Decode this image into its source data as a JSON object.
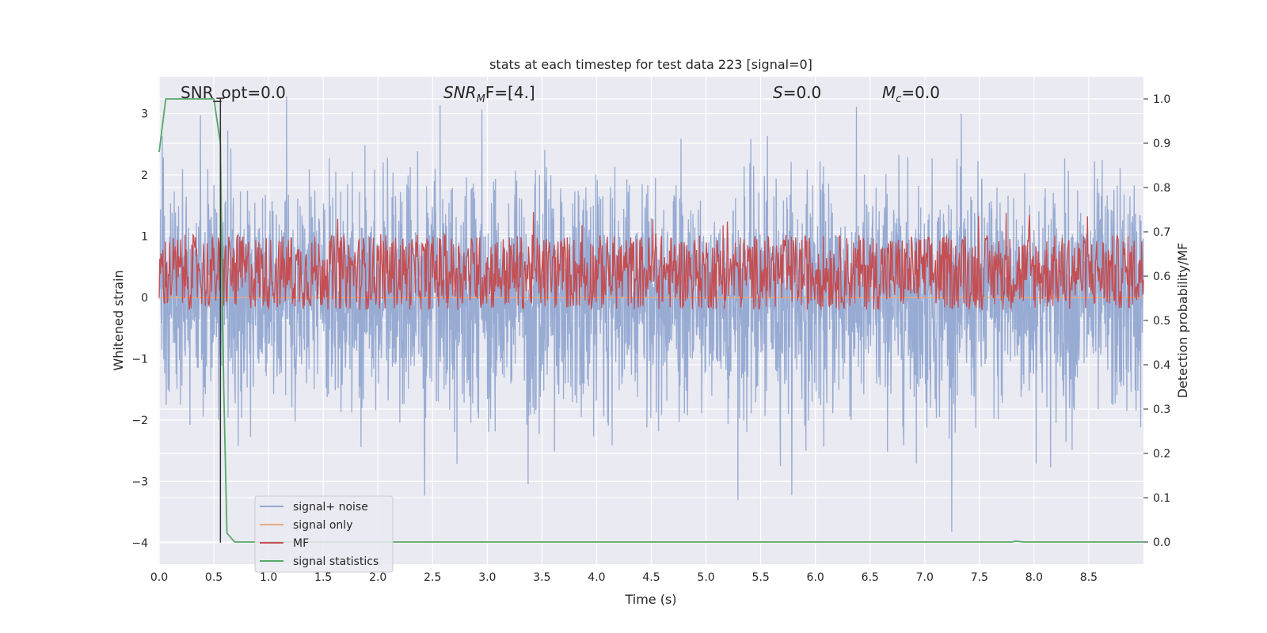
{
  "chart_data": {
    "type": "line",
    "title": "stats at each timestep for test data 223 [signal=0]",
    "xlabel": "Time (s)",
    "ylabel": "Whitened strain",
    "y2label": "Detection probability/MF",
    "xlim": [
      0.0,
      9.0
    ],
    "ylim": [
      -4.35,
      3.6
    ],
    "y2lim": [
      -0.05,
      1.05
    ],
    "x_ticks": [
      "0.0",
      "0.5",
      "1.0",
      "1.5",
      "2.0",
      "2.5",
      "3.0",
      "3.5",
      "4.0",
      "4.5",
      "5.0",
      "5.5",
      "6.0",
      "6.5",
      "7.0",
      "7.5",
      "8.0",
      "8.5"
    ],
    "y_ticks": [
      "3",
      "2",
      "1",
      "0",
      "−1",
      "−2",
      "−3",
      "−4"
    ],
    "y2_ticks": [
      "1.0",
      "0.9",
      "0.8",
      "0.7",
      "0.6",
      "0.5",
      "0.4",
      "0.3",
      "0.2",
      "0.1",
      "0.0"
    ],
    "grid": true,
    "legend_placement": "lower-left",
    "annotations": {
      "snr_opt": "SNR_opt=0.0",
      "snr_mf_base": "SNR",
      "snr_mf_sub": "M",
      "snr_mf_rest": "F=[4.]",
      "s_label": "S",
      "s_value": "=0.0",
      "mc_base": "M",
      "mc_sub": "c",
      "mc_value": "=0.0"
    },
    "series": [
      {
        "name": "signal+ noise",
        "color": "#92a8d1",
        "axis": "left",
        "style": "dense noise, approximately N(0, 0.95) with extremes from about -4.0 to 3.3",
        "noise_sigma": 0.95,
        "noise_range": [
          -4.0,
          3.3
        ]
      },
      {
        "name": "signal only",
        "color": "#e8a882",
        "axis": "left",
        "x": [
          0.0,
          9.0
        ],
        "y": [
          0.0,
          0.0
        ]
      },
      {
        "name": "MF",
        "color": "#c44e52",
        "axis": "right",
        "style": "dense noise band, roughly between 0.55 and 0.72 (centered near 0.6)",
        "band": [
          0.55,
          0.72
        ],
        "center": 0.6
      },
      {
        "name": "signal statistics",
        "color": "#55a868",
        "axis": "right",
        "x": [
          0.0,
          0.06,
          0.12,
          0.5,
          0.56,
          0.59,
          0.62,
          0.69,
          0.75,
          7.8,
          7.83,
          7.9,
          9.0
        ],
        "y": [
          0.88,
          1.0,
          1.0,
          1.0,
          0.9,
          0.35,
          0.02,
          0.0,
          0.0,
          0.0,
          0.002,
          0.0,
          0.0
        ]
      }
    ],
    "marker_line": {
      "x": 0.56,
      "y_top": 3.25,
      "y_bottom": -4.0,
      "color": "#333333"
    }
  }
}
